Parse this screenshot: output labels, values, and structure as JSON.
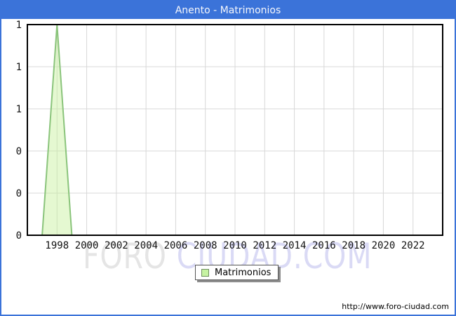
{
  "window": {
    "title": "Anento - Matrimonios"
  },
  "chart_data": {
    "type": "area",
    "title": "Anento - Matrimonios",
    "xlabel": "",
    "ylabel": "",
    "xlim": [
      1996,
      2024
    ],
    "ylim": [
      0,
      1
    ],
    "grid": true,
    "legend_position": "bottom-center",
    "x": [
      1996,
      1997,
      1998,
      1999,
      2000,
      2001,
      2002,
      2003,
      2004,
      2005,
      2006,
      2007,
      2008,
      2009,
      2010,
      2011,
      2012,
      2013,
      2014,
      2015,
      2016,
      2017,
      2018,
      2019,
      2020,
      2021,
      2022,
      2023
    ],
    "series": [
      {
        "name": "Matrimonios",
        "values": [
          0,
          0,
          1,
          0,
          0,
          0,
          0,
          0,
          0,
          0,
          0,
          0,
          0,
          0,
          0,
          0,
          0,
          0,
          0,
          0,
          0,
          0,
          0,
          0,
          0,
          0,
          0,
          0
        ]
      }
    ],
    "x_ticks": [
      1998,
      2000,
      2002,
      2004,
      2006,
      2008,
      2010,
      2012,
      2014,
      2016,
      2018,
      2020,
      2022
    ],
    "y_ticks": [
      {
        "v": 1.0,
        "label": "1"
      },
      {
        "v": 0.8,
        "label": "1"
      },
      {
        "v": 0.6,
        "label": "1"
      },
      {
        "v": 0.4,
        "label": "0"
      },
      {
        "v": 0.2,
        "label": "0"
      },
      {
        "v": 0.0,
        "label": "0"
      }
    ],
    "colors": {
      "titlebar": "#3b73d9",
      "title_text": "#f4f6fb",
      "area_fill": "rgba(197,239,152,0.45)",
      "area_stroke": "#8ac47b",
      "grid": "#d8d8d8",
      "axis": "#000000",
      "legend_swatch": "#c6f3a2"
    }
  },
  "legend": {
    "label": "Matrimonios"
  },
  "watermark": {
    "text1": "FORO",
    "text2": " CIUDAD.COM"
  },
  "footer": {
    "url": "http://www.foro-ciudad.com"
  }
}
